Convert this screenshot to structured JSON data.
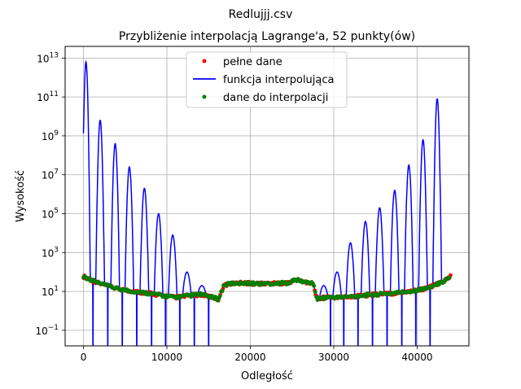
{
  "figure": {
    "suptitle": "Redlujjj.csv"
  },
  "chart_data": {
    "type": "line",
    "title": "Przybliżenie interpolacją Lagrange'a, 52 punkty(ów)",
    "xlabel": "Odległość",
    "ylabel": "Wysokość",
    "xlim": [
      -2200,
      46200
    ],
    "ylim_log10": [
      -1.8,
      13.6
    ],
    "y_scale": "log",
    "grid": true,
    "legend_location": "top-center",
    "x_ticks": [
      {
        "value": 0,
        "label": "0"
      },
      {
        "value": 10000,
        "label": "10000"
      },
      {
        "value": 20000,
        "label": "20000"
      },
      {
        "value": 30000,
        "label": "30000"
      },
      {
        "value": 40000,
        "label": "40000"
      }
    ],
    "y_ticks": [
      {
        "exp": -1,
        "base": "10",
        "sup": "−1"
      },
      {
        "exp": 1,
        "base": "10",
        "sup": "1"
      },
      {
        "exp": 3,
        "base": "10",
        "sup": "3"
      },
      {
        "exp": 5,
        "base": "10",
        "sup": "5"
      },
      {
        "exp": 7,
        "base": "10",
        "sup": "7"
      },
      {
        "exp": 9,
        "base": "10",
        "sup": "9"
      },
      {
        "exp": 11,
        "base": "10",
        "sup": "11"
      },
      {
        "exp": 13,
        "base": "10",
        "sup": "13"
      }
    ],
    "series": [
      {
        "name": "pełne dane",
        "kind": "points",
        "color": "#ff0000"
      },
      {
        "name": "funkcja interpolująca",
        "kind": "line",
        "color": "#0000ff"
      },
      {
        "name": "dane do interpolacji",
        "kind": "points",
        "color": "#008000"
      }
    ],
    "profile": {
      "x": [
        0,
        2000,
        4000,
        6000,
        8000,
        9500,
        11000,
        12500,
        14000,
        15500,
        16200,
        16800,
        17500,
        19000,
        21000,
        23000,
        24500,
        25500,
        26500,
        27500,
        28000,
        29000,
        31000,
        33000,
        35000,
        37000,
        39000,
        41000,
        43000,
        44000
      ],
      "y": [
        60,
        25,
        14,
        10,
        8,
        6,
        5,
        6,
        7,
        5,
        4,
        20,
        25,
        28,
        25,
        26,
        28,
        40,
        30,
        28,
        4,
        5,
        5,
        6,
        7,
        8,
        10,
        14,
        30,
        60
      ]
    },
    "interpolation_nodes_x": [
      0,
      862,
      1725,
      2588,
      3451,
      4314,
      5176,
      6039,
      6902,
      7765,
      8627,
      9490,
      10353,
      11216,
      12078,
      12941,
      13804,
      14667,
      15529,
      16392,
      17255,
      18118,
      18980,
      19843,
      20706,
      21569,
      22431,
      23294,
      24157,
      25020,
      25882,
      26745,
      27608,
      28471,
      29333,
      30196,
      31059,
      31922,
      32784,
      33647,
      34510,
      35373,
      36235,
      37098,
      37961,
      38824,
      39686,
      40549,
      41412,
      42275,
      43137,
      44000
    ],
    "interpolation_peaks": {
      "x": [
        300,
        2000,
        3800,
        5500,
        7300,
        9000,
        10700,
        12400,
        14200,
        15800,
        28800,
        30400,
        32000,
        33800,
        35500,
        37300,
        39000,
        40700,
        42400
      ],
      "log10_peak": [
        12.8,
        9.8,
        8.6,
        7.4,
        6.3,
        5.0,
        3.9,
        2.0,
        1.3,
        0.4,
        1.3,
        2.0,
        3.5,
        4.6,
        5.3,
        6.2,
        7.5,
        8.8,
        10.9
      ]
    }
  }
}
